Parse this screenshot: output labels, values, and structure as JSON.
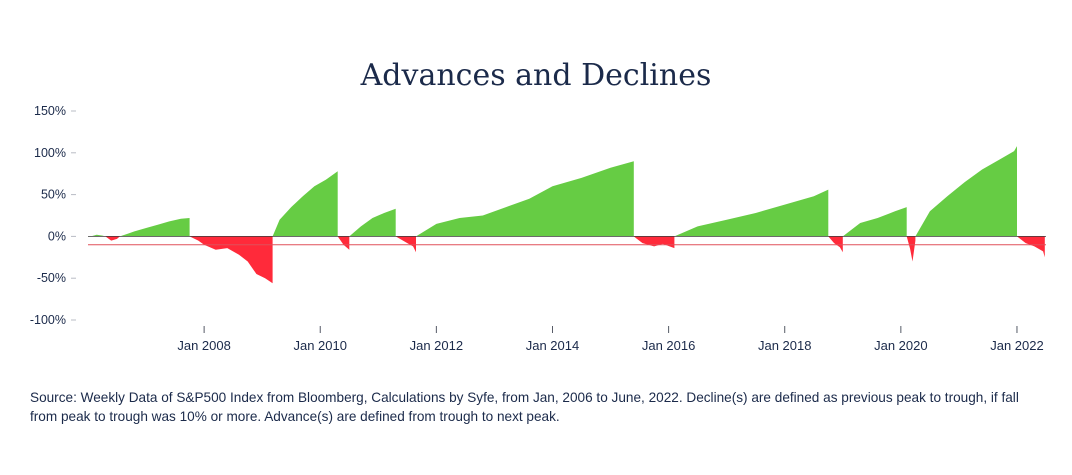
{
  "chart_data": {
    "type": "area",
    "title": "Advances and Declines",
    "xlabel": "",
    "ylabel": "",
    "ylim": [
      -100,
      150
    ],
    "y_ticks": [
      150,
      100,
      50,
      0,
      -50,
      -100
    ],
    "y_tick_labels": [
      "150%",
      "100%",
      "50%",
      "0%",
      "-50%",
      "-100%"
    ],
    "x_ticks": [
      2008,
      2010,
      2012,
      2014,
      2016,
      2018,
      2020,
      2022
    ],
    "x_tick_labels": [
      "Jan 2008",
      "Jan 2010",
      "Jan 2012",
      "Jan 2014",
      "Jan 2016",
      "Jan 2018",
      "Jan 2020",
      "Jan 2022"
    ],
    "xlim": [
      2006.0,
      2022.5
    ],
    "reference_line": -10,
    "colors": {
      "advance": "#66cc44",
      "decline": "#ff2a3a",
      "reference": "#e0505a"
    },
    "series": [
      {
        "kind": "advance",
        "x": [
          2006.05,
          2006.15,
          2006.25,
          2006.3
        ],
        "y": [
          0,
          2,
          1,
          0
        ]
      },
      {
        "kind": "decline",
        "x": [
          2006.3,
          2006.4,
          2006.5,
          2006.55
        ],
        "y": [
          0,
          -5,
          -3,
          0
        ]
      },
      {
        "kind": "advance",
        "x": [
          2006.55,
          2006.8,
          2007.0,
          2007.2,
          2007.4,
          2007.6,
          2007.75
        ],
        "y": [
          0,
          6,
          10,
          14,
          18,
          21,
          22
        ]
      },
      {
        "kind": "decline",
        "x": [
          2007.75,
          2007.9,
          2008.0,
          2008.2,
          2008.4,
          2008.6,
          2008.75,
          2008.9,
          2009.05,
          2009.18
        ],
        "y": [
          0,
          -5,
          -10,
          -16,
          -14,
          -22,
          -30,
          -45,
          -50,
          -56
        ]
      },
      {
        "kind": "advance",
        "x": [
          2009.18,
          2009.3,
          2009.5,
          2009.7,
          2009.9,
          2010.1,
          2010.3
        ],
        "y": [
          0,
          20,
          35,
          48,
          60,
          68,
          78
        ]
      },
      {
        "kind": "decline",
        "x": [
          2010.3,
          2010.4,
          2010.5
        ],
        "y": [
          0,
          -10,
          -16
        ]
      },
      {
        "kind": "advance",
        "x": [
          2010.5,
          2010.7,
          2010.9,
          2011.1,
          2011.3
        ],
        "y": [
          0,
          12,
          22,
          28,
          33
        ]
      },
      {
        "kind": "decline",
        "x": [
          2011.3,
          2011.5,
          2011.6,
          2011.65
        ],
        "y": [
          0,
          -8,
          -12,
          -19
        ]
      },
      {
        "kind": "advance",
        "x": [
          2011.65,
          2012.0,
          2012.4,
          2012.8,
          2013.2,
          2013.6,
          2014.0,
          2014.5,
          2015.0,
          2015.4
        ],
        "y": [
          0,
          15,
          22,
          25,
          35,
          45,
          60,
          70,
          82,
          90
        ]
      },
      {
        "kind": "decline",
        "x": [
          2015.4,
          2015.55,
          2015.75,
          2015.9,
          2016.1
        ],
        "y": [
          0,
          -8,
          -12,
          -9,
          -14
        ]
      },
      {
        "kind": "advance",
        "x": [
          2016.1,
          2016.5,
          2017.0,
          2017.5,
          2018.0,
          2018.5,
          2018.75
        ],
        "y": [
          0,
          12,
          20,
          28,
          38,
          48,
          56
        ]
      },
      {
        "kind": "decline",
        "x": [
          2018.75,
          2018.85,
          2018.95,
          2019.0
        ],
        "y": [
          0,
          -8,
          -13,
          -19
        ]
      },
      {
        "kind": "advance",
        "x": [
          2019.0,
          2019.3,
          2019.6,
          2019.9,
          2020.1
        ],
        "y": [
          0,
          16,
          22,
          30,
          35
        ]
      },
      {
        "kind": "decline",
        "x": [
          2020.1,
          2020.16,
          2020.2,
          2020.25
        ],
        "y": [
          0,
          -15,
          -30,
          -5
        ]
      },
      {
        "kind": "advance",
        "x": [
          2020.25,
          2020.5,
          2020.8,
          2021.1,
          2021.4,
          2021.7,
          2021.95,
          2022.0
        ],
        "y": [
          0,
          30,
          48,
          65,
          80,
          92,
          102,
          108
        ]
      },
      {
        "kind": "decline",
        "x": [
          2022.0,
          2022.15,
          2022.3,
          2022.45,
          2022.48
        ],
        "y": [
          0,
          -8,
          -12,
          -18,
          -25
        ]
      }
    ]
  },
  "source_note": "Source: Weekly Data of S&P500 Index from Bloomberg, Calculations by Syfe, from Jan, 2006 to June, 2022. Decline(s) are defined as previous peak to trough, if fall from peak to trough was 10% or more. Advance(s) are defined from trough to next peak."
}
